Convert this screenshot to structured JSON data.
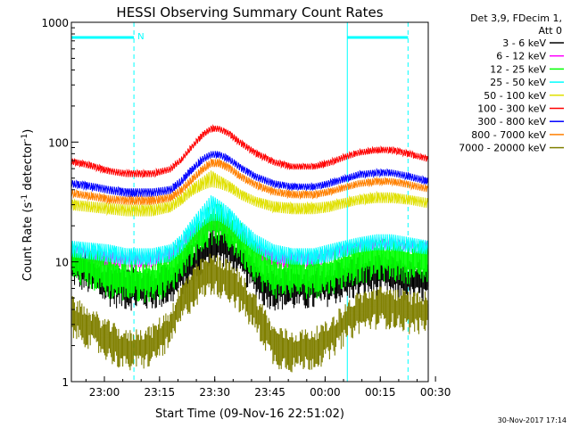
{
  "chart_data": {
    "type": "line",
    "title": "HESSI Observing Summary Count Rates",
    "xlabel": "Start Time (09-Nov-16 22:51:02)",
    "ylabel_main": "Count Rate (s",
    "ylabel_sup1": "-1",
    "ylabel_mid": " detector",
    "ylabel_sup2": "-1",
    "ylabel_end": ")",
    "yscale": "log",
    "ylim": [
      1,
      1000
    ],
    "xlim_minutes": [
      0,
      97
    ],
    "x_ticks": [
      {
        "label": "23:00",
        "minutes": 8.97
      },
      {
        "label": "23:15",
        "minutes": 23.97
      },
      {
        "label": "23:30",
        "minutes": 38.97
      },
      {
        "label": "23:45",
        "minutes": 53.97
      },
      {
        "label": "00:00",
        "minutes": 68.97
      },
      {
        "label": "00:15",
        "minutes": 83.97
      },
      {
        "label": "00:30",
        "minutes": 98.97
      }
    ],
    "y_ticks": [
      {
        "label": "1",
        "value": 1
      },
      {
        "label": "10",
        "value": 10
      },
      {
        "label": "100",
        "value": 100
      },
      {
        "label": "1000",
        "value": 1000
      }
    ],
    "legend_header": [
      "Det 3,9, FDecim 1,",
      "Att 0"
    ],
    "legend_placement": "right",
    "footer_date": "30-Nov-2017 17:14",
    "night_flag": "N",
    "series": [
      {
        "name": "3 - 6 keV",
        "color": "#000000",
        "mode": "seg",
        "x": [
          0,
          5,
          10,
          15,
          22,
          27,
          30,
          35,
          38,
          41,
          44,
          48,
          52,
          55,
          60,
          66,
          70,
          74,
          78,
          83,
          87,
          92,
          97
        ],
        "y": [
          9.5,
          8,
          6.5,
          6,
          6,
          6.5,
          8,
          11,
          14,
          14,
          12,
          9,
          6.5,
          6,
          6,
          6,
          6.5,
          7,
          7.5,
          8,
          7.5,
          7,
          7
        ]
      },
      {
        "name": "6 - 12 keV",
        "color": "#ff00ff",
        "mode": "env",
        "x": [
          0,
          5,
          10,
          15,
          22,
          27,
          30,
          35,
          38,
          41,
          44,
          48,
          52,
          55,
          60,
          66,
          70,
          74,
          78,
          83,
          87,
          92,
          97
        ],
        "lo": [
          11,
          10,
          9,
          9,
          9,
          10,
          12,
          16,
          18,
          18,
          16,
          13,
          10,
          9,
          9,
          9,
          10,
          11,
          12,
          12.5,
          12.5,
          12,
          11.5
        ],
        "hi": [
          14,
          13,
          12,
          12,
          12,
          13,
          16,
          21,
          23,
          23,
          21,
          17,
          13,
          12,
          12,
          12,
          13,
          14,
          15,
          16,
          16,
          15,
          15
        ]
      },
      {
        "name": "12 - 25 keV",
        "color": "#00ff00",
        "mode": "seg",
        "x": [
          0,
          5,
          10,
          15,
          22,
          27,
          30,
          35,
          38,
          41,
          44,
          48,
          52,
          55,
          60,
          66,
          70,
          74,
          78,
          83,
          87,
          92,
          97
        ],
        "y": [
          10,
          9,
          7.5,
          7,
          7,
          8,
          11,
          17,
          21,
          20,
          17,
          12,
          8.5,
          7.5,
          7.5,
          7.5,
          8,
          9,
          10,
          10.5,
          10.5,
          10,
          10
        ]
      },
      {
        "name": "25 - 50 keV",
        "color": "#00ffff",
        "mode": "env",
        "x": [
          0,
          5,
          10,
          15,
          22,
          27,
          30,
          33,
          36,
          38,
          40,
          43,
          46,
          50,
          55,
          60,
          66,
          70,
          74,
          78,
          83,
          87,
          92,
          97
        ],
        "lo": [
          11,
          10.5,
          10,
          9.5,
          9.5,
          10,
          12,
          16,
          20,
          22,
          22,
          19,
          15,
          12,
          10,
          9.5,
          9.5,
          10,
          11,
          12,
          12.5,
          12.5,
          12,
          11.5
        ],
        "hi": [
          15,
          14.5,
          14,
          13,
          13,
          14,
          17,
          23,
          30,
          36,
          33,
          28,
          22,
          17,
          14,
          13,
          13,
          14,
          15,
          16,
          17,
          17,
          16,
          15
        ]
      },
      {
        "name": "50 - 100 keV",
        "color": "#e0e000",
        "mode": "env",
        "x": [
          0,
          5,
          10,
          15,
          22,
          27,
          30,
          33,
          36,
          38,
          40,
          43,
          46,
          50,
          55,
          60,
          66,
          70,
          74,
          78,
          83,
          87,
          92,
          97
        ],
        "lo": [
          27,
          26,
          25,
          24,
          24,
          26,
          30,
          36,
          40,
          42,
          41,
          38,
          33,
          29,
          26,
          25,
          25,
          26,
          28,
          30,
          31,
          31,
          30,
          28
        ],
        "hi": [
          33,
          32,
          31,
          30,
          30,
          32,
          37,
          45,
          52,
          58,
          53,
          47,
          40,
          35,
          32,
          31,
          31,
          32,
          34,
          36,
          38,
          38,
          36,
          34
        ]
      },
      {
        "name": "100 - 300 keV",
        "color": "#ff0000",
        "mode": "env",
        "x": [
          0,
          5,
          10,
          15,
          22,
          27,
          30,
          33,
          36,
          38,
          40,
          43,
          46,
          50,
          55,
          60,
          66,
          70,
          74,
          78,
          83,
          87,
          92,
          97
        ],
        "lo": [
          65,
          60,
          54,
          51,
          51,
          56,
          68,
          88,
          110,
          122,
          122,
          110,
          92,
          76,
          64,
          59,
          59,
          63,
          70,
          77,
          81,
          81,
          75,
          68
        ],
        "hi": [
          73,
          68,
          61,
          58,
          58,
          63,
          76,
          98,
          124,
          137,
          137,
          124,
          104,
          86,
          72,
          66,
          66,
          71,
          79,
          86,
          91,
          91,
          84,
          76
        ]
      },
      {
        "name": "300 - 800 keV",
        "color": "#0000ff",
        "mode": "env",
        "x": [
          0,
          5,
          10,
          15,
          22,
          27,
          30,
          33,
          36,
          38,
          40,
          43,
          46,
          50,
          55,
          60,
          66,
          70,
          74,
          78,
          83,
          87,
          92,
          97
        ],
        "lo": [
          42,
          40,
          37,
          35,
          35,
          37,
          44,
          56,
          68,
          74,
          74,
          67,
          57,
          48,
          42,
          40,
          40,
          42,
          46,
          50,
          52,
          52,
          48,
          44
        ],
        "hi": [
          48,
          46,
          43,
          41,
          41,
          43,
          51,
          64,
          78,
          84,
          84,
          76,
          65,
          55,
          48,
          45,
          45,
          48,
          52,
          57,
          59,
          59,
          55,
          50
        ]
      },
      {
        "name": "800 - 7000 keV",
        "color": "#ff8000",
        "mode": "env",
        "x": [
          0,
          5,
          10,
          15,
          22,
          27,
          30,
          33,
          36,
          38,
          40,
          43,
          46,
          50,
          55,
          60,
          66,
          70,
          74,
          78,
          83,
          87,
          92,
          97
        ],
        "lo": [
          35,
          33,
          31,
          30,
          30,
          32,
          37,
          46,
          56,
          62,
          62,
          56,
          48,
          41,
          36,
          34,
          34,
          36,
          39,
          42,
          44,
          44,
          41,
          38
        ],
        "hi": [
          40,
          38,
          36,
          35,
          35,
          37,
          43,
          53,
          65,
          72,
          72,
          65,
          55,
          47,
          41,
          39,
          39,
          41,
          44,
          48,
          50,
          50,
          47,
          43
        ]
      },
      {
        "name": "7000 - 20000 keV",
        "color": "#808000",
        "mode": "seg",
        "x": [
          0,
          5,
          10,
          15,
          22,
          27,
          30,
          35,
          38,
          41,
          44,
          48,
          52,
          55,
          60,
          66,
          70,
          74,
          78,
          83,
          87,
          92,
          97
        ],
        "y": [
          3.5,
          2.8,
          2.2,
          1.8,
          2,
          2.8,
          4.5,
          7,
          8,
          7.5,
          6.5,
          4.5,
          3,
          2,
          1.8,
          1.9,
          2.2,
          3,
          3.8,
          4.2,
          4.2,
          3.8,
          3.8
        ]
      }
    ],
    "annotations": {
      "saa_flag_segments_minutes": [
        [
          0,
          17
        ],
        [
          75,
          91.5
        ]
      ],
      "solid_vlines_minutes": [
        0,
        75
      ],
      "dashed_vlines_minutes": [
        17,
        91.5
      ]
    }
  }
}
